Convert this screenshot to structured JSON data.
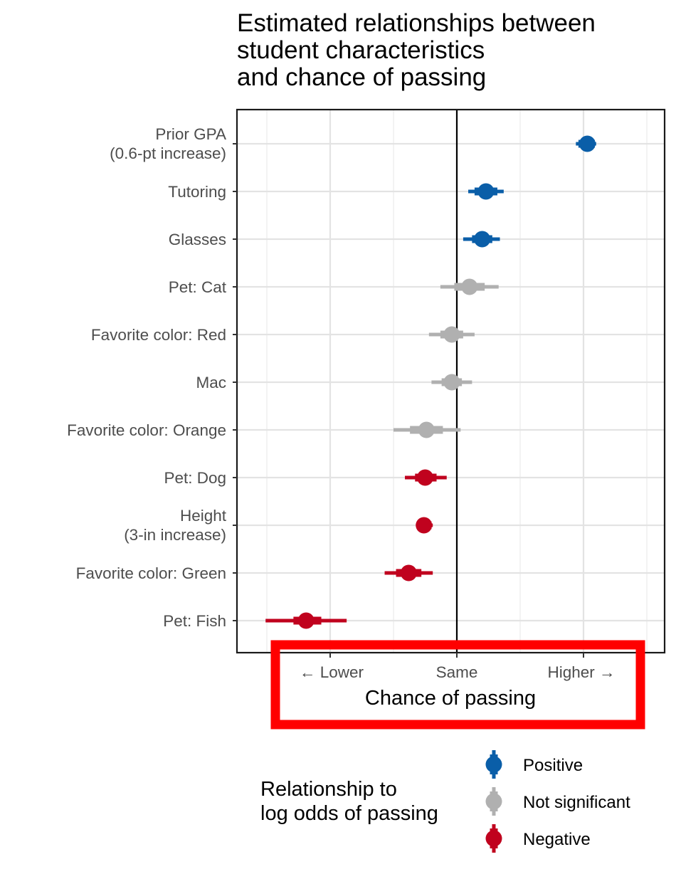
{
  "chart_data": {
    "type": "scatter",
    "subtype": "coefficient-plot",
    "title": [
      "Estimated relationships between",
      "student characteristics",
      "and chance of passing"
    ],
    "xlabel": "Chance of passing",
    "ylabel": "",
    "x_ticks": [
      {
        "label": "← Lower",
        "value": -1
      },
      {
        "label": "Same",
        "value": 0
      },
      {
        "label": "Higher →",
        "value": 1
      }
    ],
    "xlim": [
      -1.75,
      1.65
    ],
    "reference_line": 0,
    "grid": true,
    "categories": [
      [
        "Prior GPA",
        "(0.6-pt increase)"
      ],
      [
        "Tutoring"
      ],
      [
        "Glasses"
      ],
      [
        "Pet: Cat"
      ],
      [
        "Favorite color: Red"
      ],
      [
        "Mac"
      ],
      [
        "Favorite color: Orange"
      ],
      [
        "Pet: Dog"
      ],
      [
        "Height",
        "(3-in increase)"
      ],
      [
        "Favorite color: Green"
      ],
      [
        "Pet: Fish"
      ]
    ],
    "points": [
      {
        "estimate": 1.03,
        "inner": [
          0.96,
          1.09
        ],
        "outer": [
          0.94,
          1.1
        ],
        "group": "Positive"
      },
      {
        "estimate": 0.23,
        "inner": [
          0.14,
          0.32
        ],
        "outer": [
          0.09,
          0.37
        ],
        "group": "Positive"
      },
      {
        "estimate": 0.2,
        "inner": [
          0.12,
          0.28
        ],
        "outer": [
          0.05,
          0.34
        ],
        "group": "Positive"
      },
      {
        "estimate": 0.1,
        "inner": [
          -0.02,
          0.22
        ],
        "outer": [
          -0.13,
          0.33
        ],
        "group": "Not significant"
      },
      {
        "estimate": -0.04,
        "inner": [
          -0.13,
          0.05
        ],
        "outer": [
          -0.22,
          0.14
        ],
        "group": "Not significant"
      },
      {
        "estimate": -0.04,
        "inner": [
          -0.12,
          0.04
        ],
        "outer": [
          -0.2,
          0.12
        ],
        "group": "Not significant"
      },
      {
        "estimate": -0.24,
        "inner": [
          -0.37,
          -0.11
        ],
        "outer": [
          -0.5,
          0.03
        ],
        "group": "Not significant"
      },
      {
        "estimate": -0.25,
        "inner": [
          -0.33,
          -0.16
        ],
        "outer": [
          -0.41,
          -0.08
        ],
        "group": "Negative"
      },
      {
        "estimate": -0.26,
        "inner": [
          -0.31,
          -0.2
        ],
        "outer": [
          -0.32,
          -0.19
        ],
        "group": "Negative"
      },
      {
        "estimate": -0.38,
        "inner": [
          -0.48,
          -0.28
        ],
        "outer": [
          -0.57,
          -0.19
        ],
        "group": "Negative"
      },
      {
        "estimate": -1.19,
        "inner": [
          -1.29,
          -1.07
        ],
        "outer": [
          -1.51,
          -0.87
        ],
        "group": "Negative"
      }
    ],
    "legend": {
      "title": [
        "Relationship to",
        "log odds of passing"
      ],
      "placement": "bottom",
      "entries": [
        {
          "label": "Positive",
          "color": "#0a5ea8"
        },
        {
          "label": "Not significant",
          "color": "#b0b0b0"
        },
        {
          "label": "Negative",
          "color": "#c0021e"
        }
      ]
    },
    "highlight": {
      "target": "x-axis",
      "color": "#ff0000"
    }
  }
}
